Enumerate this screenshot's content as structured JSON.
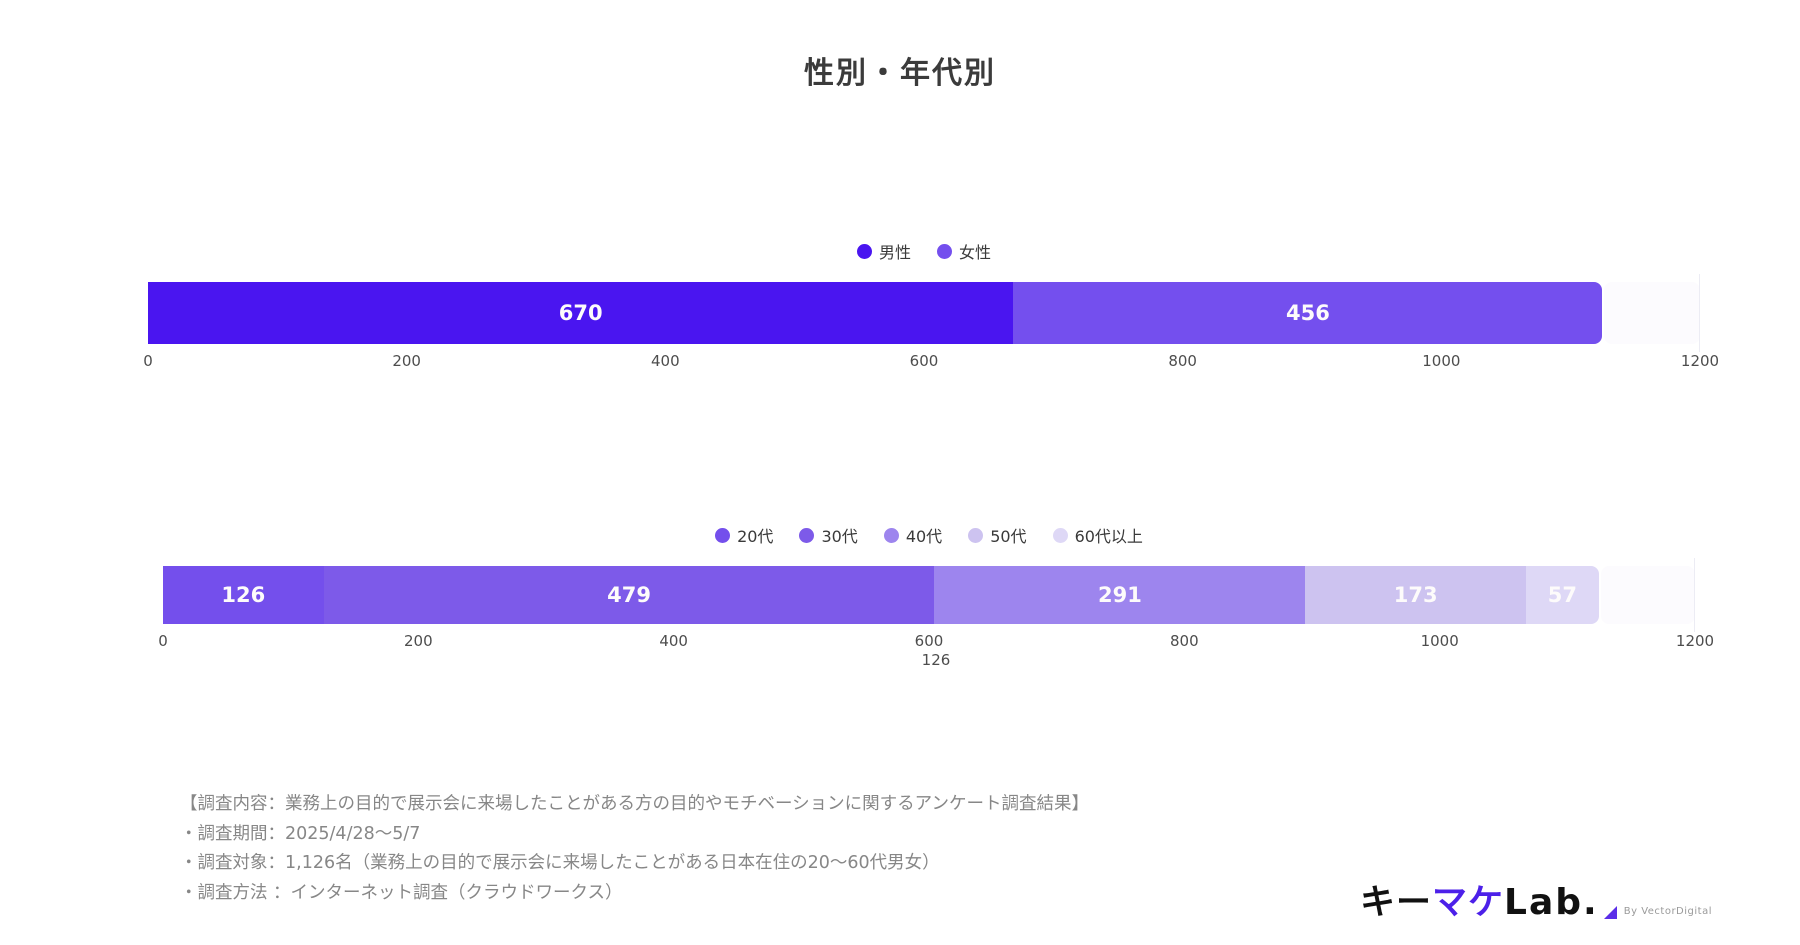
{
  "page": {
    "title": "性別・年代別"
  },
  "chart_data": [
    {
      "type": "bar",
      "orientation": "horizontal-stacked",
      "name": "性別",
      "xlim": [
        0,
        1200
      ],
      "x_ticks": [
        0,
        200,
        400,
        600,
        800,
        1000,
        1200
      ],
      "grid": "off",
      "legend_position": "top-center",
      "total_responses": 1126,
      "series": [
        {
          "name": "男性",
          "value": 670,
          "color": "#4a15f0"
        },
        {
          "name": "女性",
          "value": 456,
          "color": "#744fee"
        }
      ]
    },
    {
      "type": "bar",
      "orientation": "horizontal-stacked",
      "name": "年代別",
      "xlim": [
        0,
        1200
      ],
      "x_ticks": [
        0,
        200,
        400,
        600,
        800,
        1000,
        1200
      ],
      "grid": "off",
      "legend_position": "top-center",
      "total_responses": 1126,
      "extra_tick_label": {
        "tick": 600,
        "text": "126"
      },
      "series": [
        {
          "name": "20代",
          "value": 126,
          "color": "#744fec"
        },
        {
          "name": "30代",
          "value": 479,
          "color": "#7d5ae9"
        },
        {
          "name": "40代",
          "value": 291,
          "color": "#9d85ee"
        },
        {
          "name": "50代",
          "value": 173,
          "color": "#cdc3f0"
        },
        {
          "name": "60代以上",
          "value": 57,
          "color": "#ded8f6"
        }
      ]
    }
  ],
  "footer": {
    "lines": [
      "【調査内容：業務上の目的で展示会に来場したことがある方の目的やモチベーションに関するアンケート調査結果】",
      "・調査期間：2025/4/28〜5/7",
      "・調査対象：1,126名（業務上の目的で展示会に来場したことがある日本在住の20〜60代男女）",
      "・調査方法 ：インターネット調査（クラウドワークス）"
    ]
  },
  "logo": {
    "text_black_1": "キー",
    "text_accent": "マケ",
    "text_black_2": "Lab.",
    "byline": "By VectorDigital",
    "accent_color": "#4c20e9"
  }
}
